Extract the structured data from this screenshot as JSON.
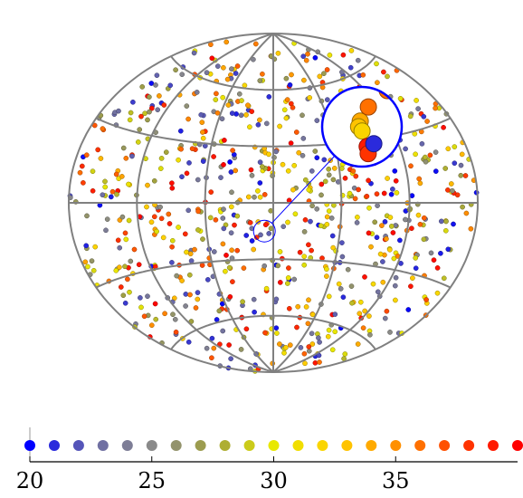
{
  "chart_data": {
    "type": "scatter",
    "projection": "aitoff",
    "title": "",
    "graticule": {
      "longitude_lines_deg": [
        -180,
        -120,
        -60,
        0,
        60,
        120,
        180
      ],
      "latitude_lines_deg": [
        -60,
        -30,
        0,
        30,
        60
      ]
    },
    "colorbar": {
      "min": 20,
      "max": 40,
      "tick_labels": [
        "20",
        "25",
        "30",
        "35"
      ],
      "tick_values": [
        20,
        25,
        30,
        35
      ],
      "swatch_values": [
        20,
        21,
        22,
        23,
        24,
        25,
        26,
        27,
        28,
        29,
        30,
        31,
        32,
        33,
        34,
        35,
        36,
        37,
        38,
        39,
        40
      ]
    },
    "colormap": [
      "#0000ff",
      "#6a6aa8",
      "#8a8a8a",
      "#a0a040",
      "#e8e800",
      "#ffd000",
      "#ff9000",
      "#ff4000",
      "#ff0000"
    ],
    "highlight": {
      "center_lon_deg": -8,
      "center_lat_deg": -15,
      "zoom_points": [
        {
          "lon": -8.2,
          "lat": -14.6,
          "value": 34
        },
        {
          "lon": -8.4,
          "lat": -15.0,
          "value": 33
        },
        {
          "lon": -8.0,
          "lat": -15.3,
          "value": 32
        },
        {
          "lon": -7.4,
          "lat": -16.4,
          "value": 39
        },
        {
          "lon": -7.3,
          "lat": -16.9,
          "value": 38
        },
        {
          "lon": -6.6,
          "lat": -16.2,
          "value": 21
        },
        {
          "lon": -7.2,
          "lat": -13.6,
          "value": 36
        }
      ]
    },
    "n_points": 800
  }
}
